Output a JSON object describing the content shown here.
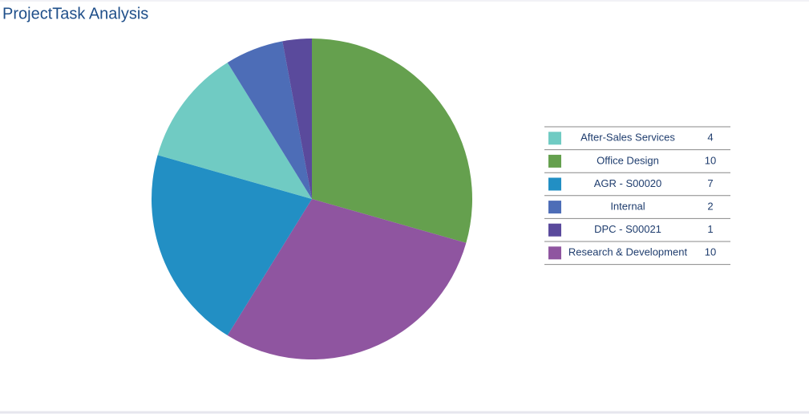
{
  "chart_data": {
    "type": "pie",
    "title": "ProjectTask Analysis",
    "categories": [
      "After-Sales Services",
      "Office Design",
      "AGR - S00020",
      "Internal",
      "DPC - S00021",
      "Research & Development"
    ],
    "values": [
      4,
      10,
      7,
      2,
      1,
      10
    ],
    "colors": [
      "#70cbc3",
      "#65a04e",
      "#228fc4",
      "#4d6db7",
      "#5a4a9c",
      "#8f55a0"
    ]
  }
}
